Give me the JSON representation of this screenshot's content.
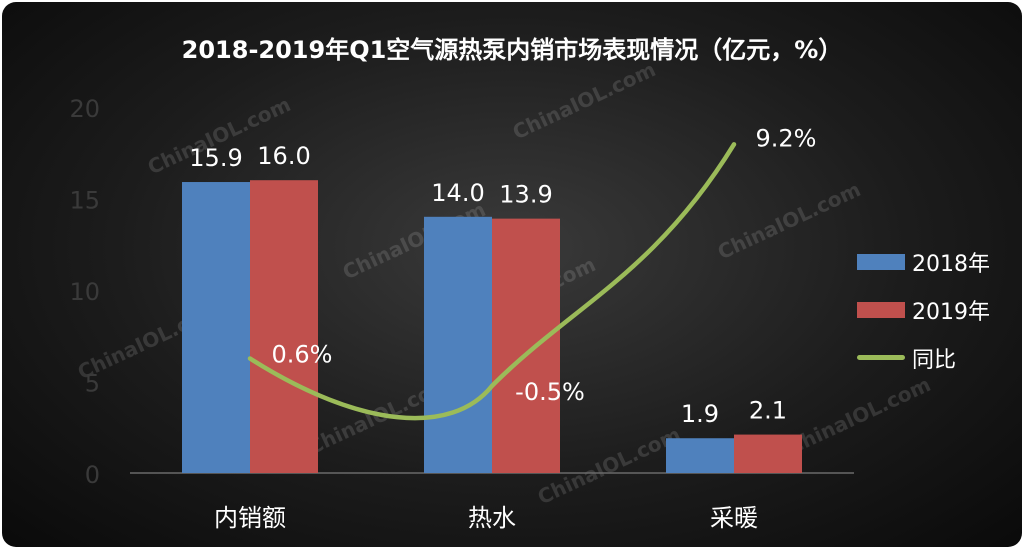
{
  "chart_data": {
    "type": "bar",
    "title": "2018-2019年Q1空气源热泵内销市场表现情况（亿元，%）",
    "categories": [
      "内销额",
      "热水",
      "采暖"
    ],
    "series": [
      {
        "name": "2018年",
        "values": [
          15.9,
          14.0,
          1.9
        ],
        "labels": [
          "15.9",
          "14.0",
          "1.9"
        ],
        "color": "#4f81bd"
      },
      {
        "name": "2019年",
        "values": [
          16.0,
          13.9,
          2.1
        ],
        "labels": [
          "16.0",
          "13.9",
          "2.1"
        ],
        "color": "#c0504d"
      }
    ],
    "line_series": {
      "name": "同比",
      "values": [
        0.6,
        -0.5,
        9.2
      ],
      "labels": [
        "0.6%",
        "-0.5%",
        "9.2%"
      ],
      "color": "#9bbb59"
    },
    "yticks": [
      "0",
      "5",
      "10",
      "15",
      "20"
    ],
    "ylim": [
      0,
      20
    ],
    "xlabel": "",
    "ylabel": "",
    "legend_position": "right",
    "grid": false,
    "watermark": "ChinaIOL.com"
  }
}
